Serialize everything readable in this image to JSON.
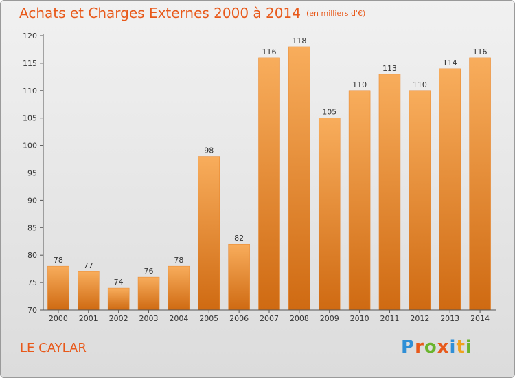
{
  "title": "Achats et Charges Externes 2000 à 2014",
  "unit_note": "(en milliers d'€)",
  "location": "LE CAYLAR",
  "brand": {
    "letters": [
      "P",
      "r",
      "o",
      "x",
      "i",
      "t",
      "i"
    ],
    "colors": [
      "#2f8fd6",
      "#e8591a",
      "#6ab42d",
      "#e8591a",
      "#2f8fd6",
      "#f0a21d",
      "#6ab42d"
    ]
  },
  "chart_data": {
    "type": "bar",
    "categories": [
      "2000",
      "2001",
      "2002",
      "2003",
      "2004",
      "2005",
      "2006",
      "2007",
      "2008",
      "2009",
      "2010",
      "2011",
      "2012",
      "2013",
      "2014"
    ],
    "values": [
      78,
      77,
      74,
      76,
      78,
      98,
      82,
      116,
      118,
      105,
      110,
      113,
      110,
      114,
      116
    ],
    "ylim": [
      70,
      120
    ],
    "yticks": [
      70,
      75,
      80,
      85,
      90,
      95,
      100,
      105,
      110,
      115,
      120
    ],
    "grid": false,
    "bar_color": "#e8852a",
    "bar_color_light": "#f8ad5c",
    "bar_color_dark": "#cf6a12"
  }
}
